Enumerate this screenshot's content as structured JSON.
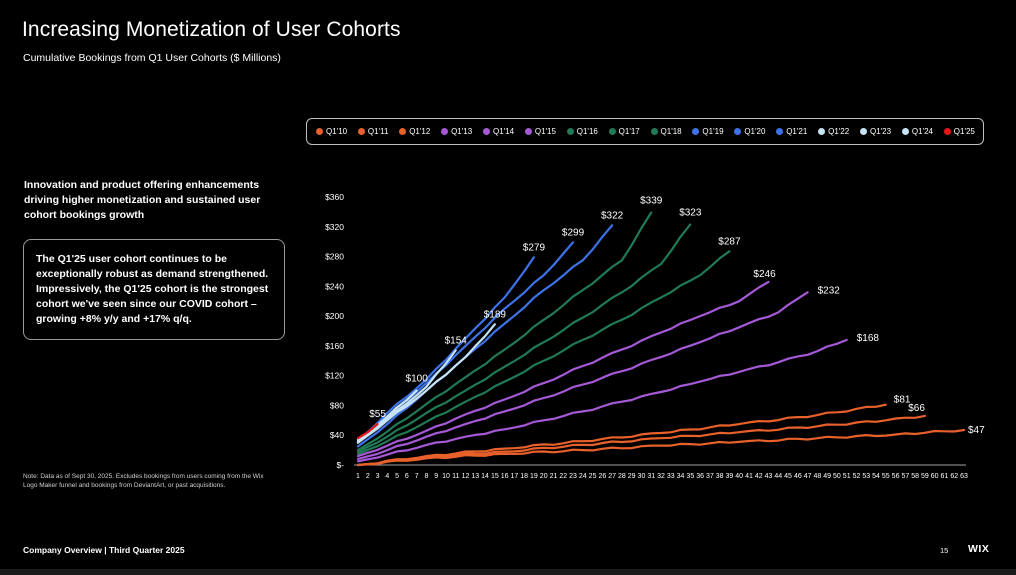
{
  "slide": {
    "title": "Increasing Monetization of User Cohorts",
    "subtitle": "Cumulative Bookings from Q1 User Cohorts ($ Millions)",
    "headline": "Innovation and product offering enhancements driving higher monetization and sustained user cohort bookings growth",
    "callout": "The Q1'25 user cohort continues to be exceptionally robust as demand strengthened. Impressively, the Q1'25 cohort is the strongest cohort we've seen since our COVID cohort – growing +8% y/y and +17% q/q.",
    "note": "Note: Data as of Sept 30, 2025. Excludes bookings from users coming from the Wix Logo Maker funnel and bookings from DeviantArt, or past acquisitions.",
    "footer": "Company Overview | Third Quarter 2025",
    "page_number": "15",
    "logo": "WIX"
  },
  "chart_data": {
    "type": "line",
    "title": "Cumulative Bookings from Q1 User Cohorts ($ Millions)",
    "xlabel": "",
    "ylabel": "",
    "ylim": [
      0,
      360
    ],
    "yticks": [
      0,
      40,
      80,
      120,
      160,
      200,
      240,
      280,
      320,
      360
    ],
    "ytick_labels": [
      "$-",
      "$40",
      "$80",
      "$120",
      "$160",
      "$200",
      "$240",
      "$280",
      "$320",
      "$360"
    ],
    "xlim": [
      1,
      63
    ],
    "x_categories": [
      1,
      2,
      3,
      4,
      5,
      6,
      7,
      8,
      9,
      10,
      11,
      12,
      13,
      14,
      15,
      16,
      17,
      18,
      19,
      20,
      21,
      22,
      23,
      24,
      25,
      26,
      27,
      28,
      29,
      30,
      31,
      32,
      33,
      34,
      35,
      36,
      37,
      38,
      39,
      40,
      41,
      42,
      43,
      44,
      45,
      46,
      47,
      48,
      49,
      50,
      51,
      52,
      53,
      54,
      55,
      56,
      57,
      58,
      59,
      60,
      61,
      62,
      63
    ],
    "grid": false,
    "legend_position": "top",
    "series": [
      {
        "name": "Q1'10",
        "color": "#e8602a",
        "final_label": "$47",
        "points": [
          [
            1,
            0
          ],
          [
            8,
            9
          ],
          [
            16,
            15
          ],
          [
            24,
            20
          ],
          [
            32,
            26
          ],
          [
            40,
            31
          ],
          [
            48,
            36
          ],
          [
            56,
            41
          ],
          [
            63,
            47
          ]
        ]
      },
      {
        "name": "Q1'11",
        "color": "#e8602a",
        "final_label": "$66",
        "points": [
          [
            1,
            0
          ],
          [
            8,
            11
          ],
          [
            16,
            18
          ],
          [
            24,
            27
          ],
          [
            32,
            36
          ],
          [
            40,
            44
          ],
          [
            48,
            52
          ],
          [
            55,
            60
          ],
          [
            59,
            66
          ]
        ]
      },
      {
        "name": "Q1'12",
        "color": "#e8602a",
        "final_label": "$81",
        "points": [
          [
            1,
            0
          ],
          [
            8,
            12
          ],
          [
            16,
            22
          ],
          [
            24,
            32
          ],
          [
            32,
            43
          ],
          [
            40,
            55
          ],
          [
            48,
            67
          ],
          [
            55,
            81
          ]
        ]
      },
      {
        "name": "Q1'13",
        "color": "#a659d6",
        "final_label": "$168",
        "points": [
          [
            1,
            5
          ],
          [
            4,
            14
          ],
          [
            8,
            27
          ],
          [
            12,
            38
          ],
          [
            16,
            48
          ],
          [
            20,
            60
          ],
          [
            24,
            72
          ],
          [
            28,
            85
          ],
          [
            32,
            98
          ],
          [
            36,
            112
          ],
          [
            40,
            125
          ],
          [
            44,
            138
          ],
          [
            48,
            153
          ],
          [
            51,
            168
          ]
        ]
      },
      {
        "name": "Q1'14",
        "color": "#a659d6",
        "final_label": "$232",
        "points": [
          [
            1,
            8
          ],
          [
            4,
            20
          ],
          [
            8,
            38
          ],
          [
            12,
            55
          ],
          [
            16,
            72
          ],
          [
            20,
            90
          ],
          [
            24,
            108
          ],
          [
            28,
            126
          ],
          [
            32,
            145
          ],
          [
            36,
            165
          ],
          [
            40,
            185
          ],
          [
            44,
            205
          ],
          [
            47,
            232
          ]
        ]
      },
      {
        "name": "Q1'15",
        "color": "#a659d6",
        "final_label": "$246",
        "points": [
          [
            1,
            12
          ],
          [
            4,
            26
          ],
          [
            8,
            46
          ],
          [
            12,
            68
          ],
          [
            16,
            88
          ],
          [
            20,
            110
          ],
          [
            24,
            133
          ],
          [
            28,
            155
          ],
          [
            32,
            178
          ],
          [
            36,
            200
          ],
          [
            40,
            220
          ],
          [
            43,
            246
          ]
        ]
      },
      {
        "name": "Q1'16",
        "color": "#1f7a55",
        "final_label": "$287",
        "points": [
          [
            1,
            15
          ],
          [
            4,
            32
          ],
          [
            8,
            58
          ],
          [
            12,
            85
          ],
          [
            16,
            112
          ],
          [
            20,
            140
          ],
          [
            24,
            168
          ],
          [
            28,
            195
          ],
          [
            32,
            225
          ],
          [
            36,
            255
          ],
          [
            39,
            287
          ]
        ]
      },
      {
        "name": "Q1'17",
        "color": "#1f7a55",
        "final_label": "$323",
        "points": [
          [
            1,
            18
          ],
          [
            4,
            38
          ],
          [
            8,
            70
          ],
          [
            12,
            100
          ],
          [
            16,
            132
          ],
          [
            20,
            165
          ],
          [
            24,
            198
          ],
          [
            28,
            232
          ],
          [
            32,
            270
          ],
          [
            35,
            323
          ]
        ]
      },
      {
        "name": "Q1'18",
        "color": "#1f7a55",
        "final_label": "$339",
        "points": [
          [
            1,
            20
          ],
          [
            4,
            45
          ],
          [
            8,
            82
          ],
          [
            12,
            118
          ],
          [
            16,
            155
          ],
          [
            20,
            195
          ],
          [
            24,
            235
          ],
          [
            28,
            275
          ],
          [
            31,
            339
          ]
        ]
      },
      {
        "name": "Q1'19",
        "color": "#3d73e8",
        "final_label": "$322",
        "points": [
          [
            1,
            25
          ],
          [
            4,
            55
          ],
          [
            8,
            100
          ],
          [
            12,
            145
          ],
          [
            16,
            190
          ],
          [
            20,
            235
          ],
          [
            24,
            275
          ],
          [
            27,
            322
          ]
        ]
      },
      {
        "name": "Q1'20",
        "color": "#3d73e8",
        "final_label": "$299",
        "points": [
          [
            1,
            30
          ],
          [
            4,
            65
          ],
          [
            8,
            110
          ],
          [
            12,
            160
          ],
          [
            16,
            210
          ],
          [
            20,
            255
          ],
          [
            23,
            299
          ]
        ]
      },
      {
        "name": "Q1'21",
        "color": "#3d73e8",
        "final_label": "$279",
        "points": [
          [
            1,
            32
          ],
          [
            4,
            70
          ],
          [
            8,
            115
          ],
          [
            12,
            170
          ],
          [
            16,
            225
          ],
          [
            19,
            279
          ]
        ]
      },
      {
        "name": "Q1'22",
        "color": "#c7e4f7",
        "final_label": "$189",
        "points": [
          [
            1,
            30
          ],
          [
            4,
            60
          ],
          [
            8,
            100
          ],
          [
            12,
            145
          ],
          [
            15,
            189
          ]
        ]
      },
      {
        "name": "Q1'23",
        "color": "#c7e4f7",
        "final_label": "$154",
        "points": [
          [
            1,
            32
          ],
          [
            4,
            62
          ],
          [
            8,
            105
          ],
          [
            11,
            154
          ]
        ]
      },
      {
        "name": "Q1'24",
        "color": "#c7e4f7",
        "final_label": "$100",
        "points": [
          [
            1,
            34
          ],
          [
            4,
            65
          ],
          [
            7,
            100
          ]
        ]
      },
      {
        "name": "Q1'25",
        "color": "#e8161b",
        "final_label": "$55",
        "points": [
          [
            1,
            36
          ],
          [
            2,
            44
          ],
          [
            3,
            55
          ]
        ]
      }
    ]
  }
}
